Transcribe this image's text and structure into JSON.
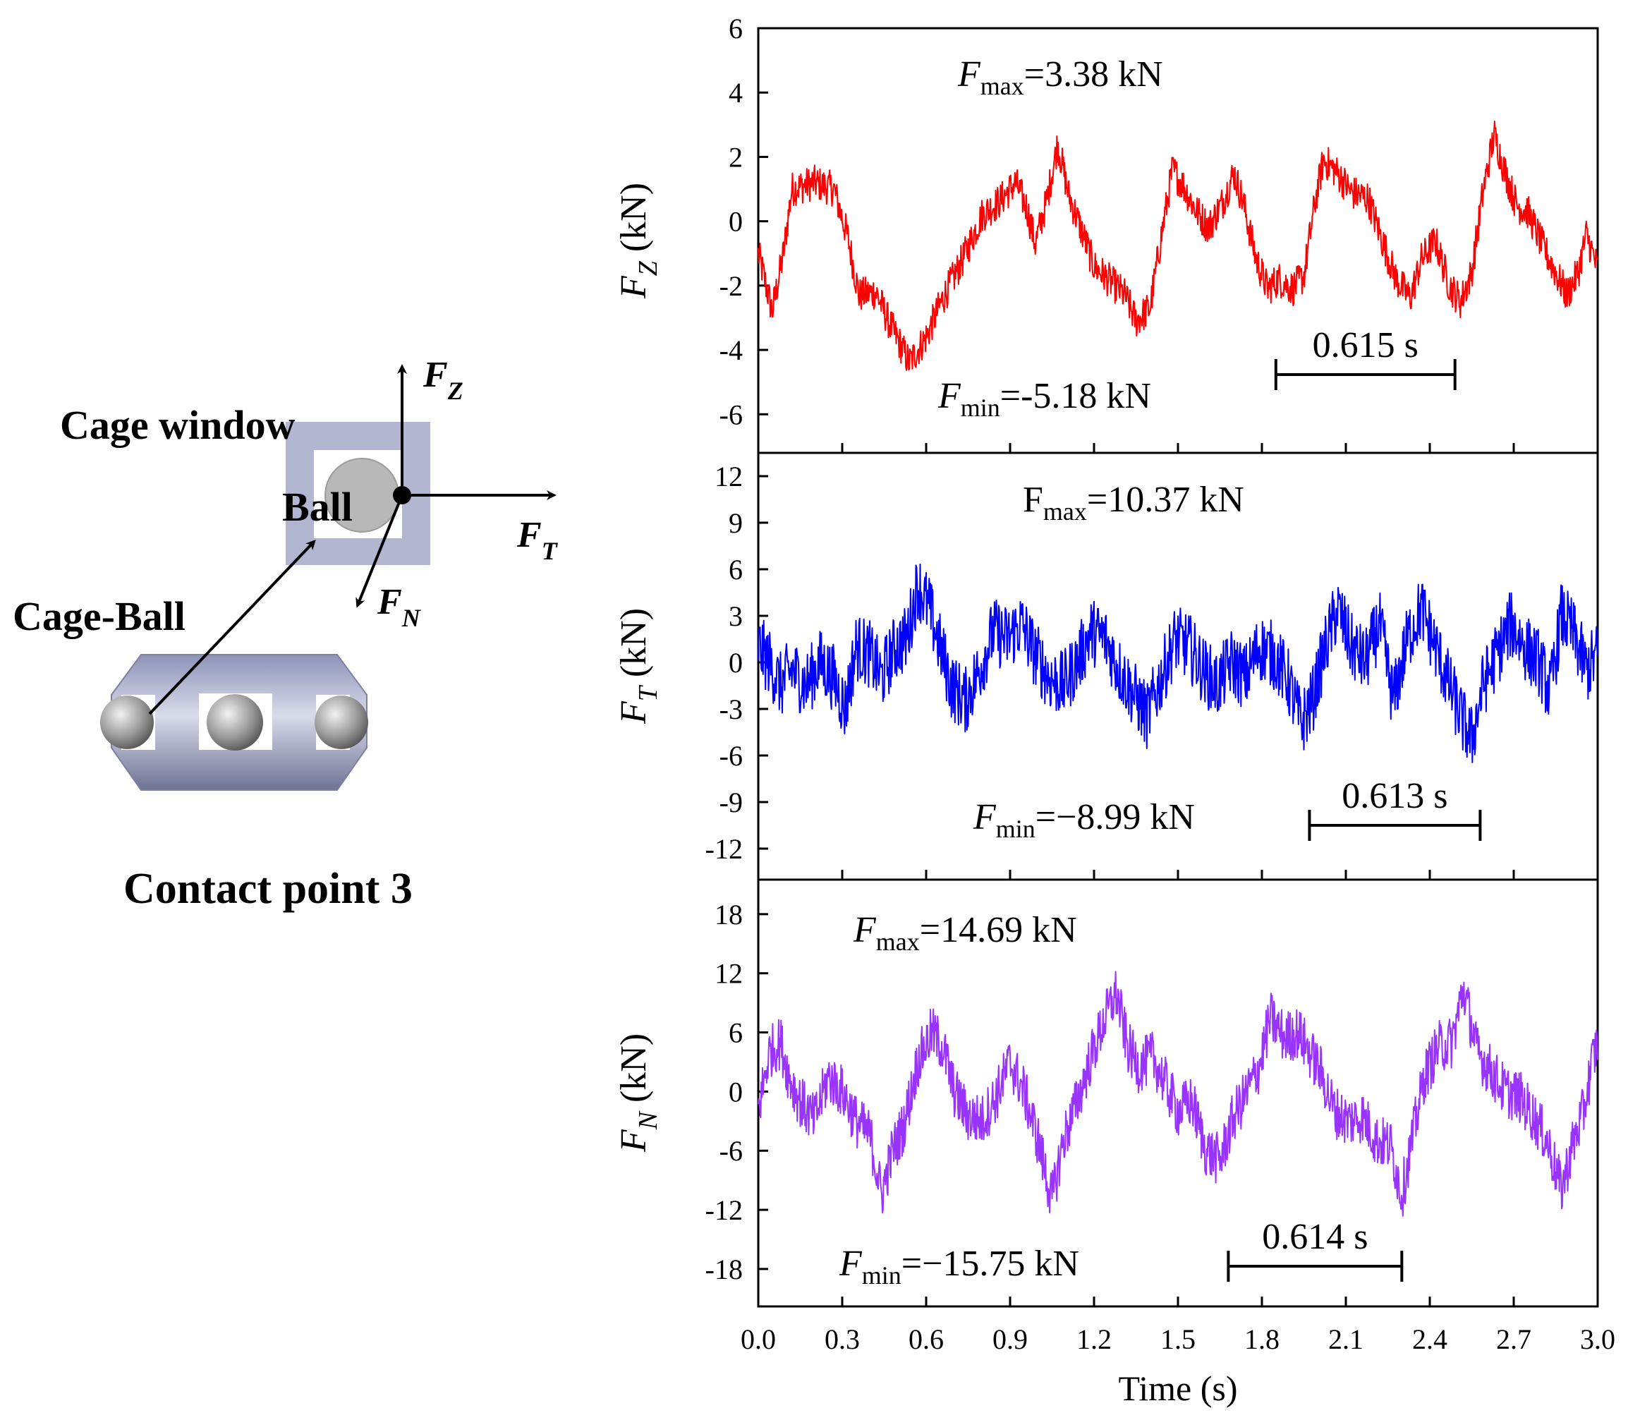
{
  "diagram": {
    "labels": {
      "cage_window": "Cage window",
      "ball": "Ball",
      "cage_ball": "Cage-Ball",
      "contact_point": "Contact point 3"
    },
    "axes": {
      "fz": {
        "main": "F",
        "sub": "Z"
      },
      "ft": {
        "main": "F",
        "sub": "T"
      },
      "fn": {
        "main": "F",
        "sub": "N"
      }
    }
  },
  "chart_data": [
    {
      "type": "line",
      "id": "fz",
      "color": "#ff0000",
      "x_range": [
        0.0,
        3.0
      ],
      "ylim": [
        -7.2,
        6.0
      ],
      "yticks": [
        6,
        4,
        2,
        0,
        -2,
        -4,
        -6
      ],
      "ylabel": {
        "main": "F",
        "sub": "Z",
        "unit": " (kN)"
      },
      "annotations": {
        "max": {
          "main": "F",
          "sub": "max",
          "text": "=3.38 kN"
        },
        "min": {
          "main": "F",
          "sub": "min",
          "text": "=-5.18 kN"
        },
        "period": {
          "text": "0.615 s",
          "start": 1.85,
          "end": 2.49
        }
      },
      "series": [
        {
          "points": [
            [
              0.0,
              -1.0
            ],
            [
              0.05,
              -2.8
            ],
            [
              0.09,
              -1.0
            ],
            [
              0.12,
              1.0
            ],
            [
              0.2,
              1.2
            ],
            [
              0.27,
              1.0
            ],
            [
              0.32,
              -0.5
            ],
            [
              0.36,
              -2.3
            ],
            [
              0.42,
              -2.2
            ],
            [
              0.47,
              -3.2
            ],
            [
              0.54,
              -4.4
            ],
            [
              0.6,
              -3.6
            ],
            [
              0.66,
              -2.4
            ],
            [
              0.73,
              -1.2
            ],
            [
              0.8,
              0.2
            ],
            [
              0.86,
              0.6
            ],
            [
              0.92,
              1.2
            ],
            [
              0.96,
              0.4
            ],
            [
              0.99,
              -0.7
            ],
            [
              1.03,
              0.6
            ],
            [
              1.07,
              2.4
            ],
            [
              1.11,
              0.8
            ],
            [
              1.16,
              -0.4
            ],
            [
              1.2,
              -1.4
            ],
            [
              1.25,
              -1.8
            ],
            [
              1.31,
              -2.3
            ],
            [
              1.35,
              -3.1
            ],
            [
              1.4,
              -2.7
            ],
            [
              1.44,
              -0.5
            ],
            [
              1.48,
              1.6
            ],
            [
              1.52,
              1.1
            ],
            [
              1.56,
              0.4
            ],
            [
              1.61,
              -0.2
            ],
            [
              1.66,
              0.6
            ],
            [
              1.7,
              1.5
            ],
            [
              1.73,
              0.7
            ],
            [
              1.78,
              -1.2
            ],
            [
              1.82,
              -2.1
            ],
            [
              1.86,
              -1.8
            ],
            [
              1.91,
              -2.1
            ],
            [
              1.95,
              -1.7
            ],
            [
              1.99,
              0.6
            ],
            [
              2.02,
              1.9
            ],
            [
              2.06,
              1.6
            ],
            [
              2.12,
              0.9
            ],
            [
              2.18,
              0.7
            ],
            [
              2.23,
              -0.6
            ],
            [
              2.28,
              -1.8
            ],
            [
              2.33,
              -2.4
            ],
            [
              2.37,
              -1.2
            ],
            [
              2.42,
              -0.6
            ],
            [
              2.47,
              -2.0
            ],
            [
              2.51,
              -2.5
            ],
            [
              2.55,
              -1.6
            ],
            [
              2.59,
              0.9
            ],
            [
              2.63,
              2.7
            ],
            [
              2.67,
              1.5
            ],
            [
              2.71,
              0.5
            ],
            [
              2.75,
              0.3
            ],
            [
              2.8,
              -0.7
            ],
            [
              2.85,
              -1.6
            ],
            [
              2.89,
              -2.3
            ],
            [
              2.93,
              -1.6
            ],
            [
              2.96,
              -0.4
            ],
            [
              3.0,
              -1.5
            ]
          ],
          "noise": 0.55
        }
      ]
    },
    {
      "type": "line",
      "id": "ft",
      "color": "#0000ff",
      "x_range": [
        0.0,
        3.0
      ],
      "ylim": [
        -14.0,
        13.5
      ],
      "yticks": [
        12,
        9,
        6,
        3,
        0,
        -3,
        -6,
        -9,
        -12
      ],
      "ylabel": {
        "main": "F",
        "sub": "T",
        "unit": " (kN)"
      },
      "annotations": {
        "max": {
          "main": "F",
          "sub": "max",
          "text": "=10.37 kN"
        },
        "min": {
          "main": "F",
          "sub": "min",
          "text": "=−8.99 kN"
        },
        "period": {
          "text": "0.613 s",
          "start": 1.97,
          "end": 2.58
        }
      },
      "series": [
        {
          "points": [
            [
              0.0,
              1.0
            ],
            [
              0.04,
              0.0
            ],
            [
              0.08,
              -1.5
            ],
            [
              0.12,
              -0.5
            ],
            [
              0.17,
              -1.5
            ],
            [
              0.22,
              0.0
            ],
            [
              0.27,
              -1.0
            ],
            [
              0.31,
              -3.0
            ],
            [
              0.35,
              1.0
            ],
            [
              0.4,
              0.5
            ],
            [
              0.44,
              -1.0
            ],
            [
              0.49,
              1.0
            ],
            [
              0.53,
              1.5
            ],
            [
              0.57,
              5.0
            ],
            [
              0.61,
              3.5
            ],
            [
              0.65,
              1.0
            ],
            [
              0.69,
              -1.5
            ],
            [
              0.74,
              -2.5
            ],
            [
              0.79,
              -0.5
            ],
            [
              0.84,
              2.0
            ],
            [
              0.89,
              1.5
            ],
            [
              0.94,
              2.5
            ],
            [
              0.99,
              0.5
            ],
            [
              1.04,
              -1.0
            ],
            [
              1.09,
              -1.5
            ],
            [
              1.14,
              0.0
            ],
            [
              1.19,
              2.0
            ],
            [
              1.24,
              1.5
            ],
            [
              1.29,
              -0.5
            ],
            [
              1.34,
              -2.0
            ],
            [
              1.39,
              -3.5
            ],
            [
              1.44,
              -1.0
            ],
            [
              1.49,
              1.5
            ],
            [
              1.54,
              1.0
            ],
            [
              1.59,
              -0.5
            ],
            [
              1.64,
              -1.5
            ],
            [
              1.69,
              0.0
            ],
            [
              1.74,
              -1.0
            ],
            [
              1.79,
              1.0
            ],
            [
              1.84,
              0.5
            ],
            [
              1.89,
              -1.0
            ],
            [
              1.94,
              -4.0
            ],
            [
              1.98,
              -2.5
            ],
            [
              2.02,
              0.5
            ],
            [
              2.07,
              3.5
            ],
            [
              2.12,
              1.0
            ],
            [
              2.17,
              0.0
            ],
            [
              2.22,
              2.5
            ],
            [
              2.27,
              -2.5
            ],
            [
              2.32,
              1.5
            ],
            [
              2.37,
              3.5
            ],
            [
              2.42,
              1.0
            ],
            [
              2.46,
              -1.0
            ],
            [
              2.51,
              -3.5
            ],
            [
              2.55,
              -5.0
            ],
            [
              2.59,
              -1.5
            ],
            [
              2.64,
              0.5
            ],
            [
              2.69,
              2.5
            ],
            [
              2.74,
              1.0
            ],
            [
              2.79,
              0.0
            ],
            [
              2.83,
              -2.0
            ],
            [
              2.87,
              3.0
            ],
            [
              2.91,
              2.0
            ],
            [
              2.96,
              -0.5
            ],
            [
              3.0,
              0.5
            ]
          ],
          "noise": 2.2
        }
      ]
    },
    {
      "type": "line",
      "id": "fn",
      "color": "#9933ff",
      "x_range": [
        0.0,
        3.0
      ],
      "ylim": [
        -21.8,
        21.5
      ],
      "yticks": [
        18,
        12,
        6,
        0,
        -6,
        -12,
        -18
      ],
      "ylabel": {
        "main": "F",
        "sub": "N",
        "unit": " (kN)"
      },
      "annotations": {
        "max": {
          "main": "F",
          "sub": "max",
          "text": "=14.69 kN"
        },
        "min": {
          "main": "F",
          "sub": "min",
          "text": "=−15.75 kN"
        },
        "period": {
          "text": "0.614 s",
          "start": 1.68,
          "end": 2.3
        }
      },
      "series": [
        {
          "points": [
            [
              0.0,
              -2.0
            ],
            [
              0.04,
              4.0
            ],
            [
              0.08,
              5.0
            ],
            [
              0.11,
              1.5
            ],
            [
              0.15,
              -1.0
            ],
            [
              0.2,
              -3.0
            ],
            [
              0.25,
              1.5
            ],
            [
              0.3,
              0.0
            ],
            [
              0.35,
              -3.0
            ],
            [
              0.4,
              -4.5
            ],
            [
              0.44,
              -10.5
            ],
            [
              0.48,
              -6.0
            ],
            [
              0.52,
              -3.5
            ],
            [
              0.57,
              3.0
            ],
            [
              0.62,
              6.0
            ],
            [
              0.66,
              4.5
            ],
            [
              0.7,
              0.0
            ],
            [
              0.75,
              -2.5
            ],
            [
              0.8,
              -3.0
            ],
            [
              0.85,
              -0.5
            ],
            [
              0.9,
              3.0
            ],
            [
              0.95,
              0.0
            ],
            [
              1.0,
              -5.0
            ],
            [
              1.05,
              -11.0
            ],
            [
              1.09,
              -5.0
            ],
            [
              1.14,
              -1.0
            ],
            [
              1.19,
              3.5
            ],
            [
              1.24,
              7.5
            ],
            [
              1.28,
              10.0
            ],
            [
              1.32,
              4.5
            ],
            [
              1.36,
              2.5
            ],
            [
              1.41,
              3.5
            ],
            [
              1.46,
              0.5
            ],
            [
              1.5,
              -2.0
            ],
            [
              1.55,
              -1.0
            ],
            [
              1.6,
              -6.0
            ],
            [
              1.65,
              -7.0
            ],
            [
              1.7,
              -2.5
            ],
            [
              1.74,
              -0.5
            ],
            [
              1.79,
              2.5
            ],
            [
              1.83,
              7.5
            ],
            [
              1.88,
              5.5
            ],
            [
              1.93,
              6.0
            ],
            [
              1.97,
              4.0
            ],
            [
              2.01,
              2.0
            ],
            [
              2.06,
              -2.0
            ],
            [
              2.11,
              -3.0
            ],
            [
              2.16,
              -2.5
            ],
            [
              2.21,
              -5.0
            ],
            [
              2.26,
              -5.5
            ],
            [
              2.3,
              -10.5
            ],
            [
              2.34,
              -4.5
            ],
            [
              2.38,
              1.5
            ],
            [
              2.43,
              4.5
            ],
            [
              2.48,
              5.0
            ],
            [
              2.52,
              10.5
            ],
            [
              2.57,
              4.0
            ],
            [
              2.62,
              2.0
            ],
            [
              2.67,
              0.0
            ],
            [
              2.72,
              -0.5
            ],
            [
              2.77,
              -2.5
            ],
            [
              2.82,
              -5.0
            ],
            [
              2.87,
              -10.0
            ],
            [
              2.91,
              -5.5
            ],
            [
              2.95,
              -2.0
            ],
            [
              2.98,
              3.0
            ],
            [
              3.0,
              5.0
            ]
          ],
          "noise": 2.7
        }
      ]
    }
  ],
  "shared_x": {
    "label": "Time (s)",
    "ticks": [
      "0.0",
      "0.3",
      "0.6",
      "0.9",
      "1.2",
      "1.5",
      "1.8",
      "2.1",
      "2.4",
      "2.7",
      "3.0"
    ],
    "tick_values": [
      0.0,
      0.3,
      0.6,
      0.9,
      1.2,
      1.5,
      1.8,
      2.1,
      2.4,
      2.7,
      3.0
    ]
  }
}
